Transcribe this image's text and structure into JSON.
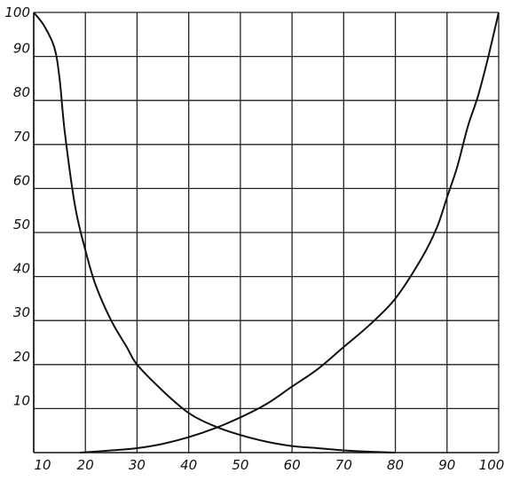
{
  "chart_data": {
    "type": "line",
    "title": "",
    "xlabel": "",
    "ylabel": "",
    "xlim": [
      10,
      100
    ],
    "ylim": [
      0,
      100
    ],
    "x_ticks": [
      10,
      20,
      30,
      40,
      50,
      60,
      70,
      80,
      90,
      100
    ],
    "y_ticks": [
      10,
      20,
      30,
      40,
      50,
      60,
      70,
      80,
      90,
      100
    ],
    "grid": true,
    "legend": "none",
    "line_color": "#111111",
    "series": [
      {
        "x": [
          10,
          12,
          14,
          15,
          16,
          18,
          20,
          22,
          25,
          28,
          30,
          35,
          40,
          45,
          50,
          55,
          60,
          65,
          70,
          75,
          80
        ],
        "y": [
          100,
          97,
          92,
          85,
          73,
          56,
          46,
          38,
          30,
          24,
          20,
          14,
          9,
          6,
          4,
          2.5,
          1.5,
          1,
          0.5,
          0.2,
          0
        ]
      },
      {
        "x": [
          19,
          25,
          30,
          35,
          40,
          45,
          50,
          55,
          60,
          65,
          70,
          75,
          80,
          85,
          88,
          90,
          92,
          94,
          96,
          98,
          100
        ],
        "y": [
          0,
          0.5,
          1,
          2,
          3.5,
          5.5,
          8,
          11,
          15,
          19,
          24,
          29,
          35,
          44,
          51,
          58,
          65,
          74,
          81,
          90,
          100
        ]
      }
    ]
  }
}
